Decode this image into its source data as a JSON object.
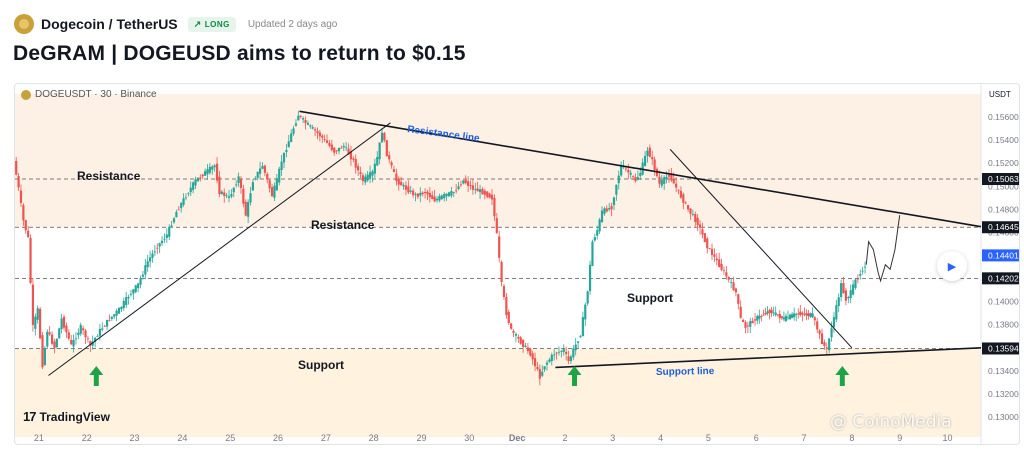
{
  "header": {
    "symbol": "Dogecoin / TetherUS",
    "badge": "LONG",
    "badge_icon": "arrow-up-right-icon",
    "updated": "Updated 2 days ago"
  },
  "title": "DeGRAM | DOGEUSD aims to return to $0.15",
  "chart_header": "DOGEUSDT · 30 · Binance",
  "branding": "TradingView",
  "watermark": "@ CoinoMedia",
  "chart_data": {
    "type": "candlestick",
    "symbol": "DOGEUSDT",
    "interval": "30",
    "exchange": "Binance",
    "currency_label": "USDT",
    "y_ticks": [
      "0.15600",
      "0.15400",
      "0.15200",
      "0.15000",
      "0.14800",
      "0.14600",
      "0.14400",
      "0.14200",
      "0.14000",
      "0.13800",
      "0.13600",
      "0.13400",
      "0.13200",
      "0.13000"
    ],
    "ylim": [
      0.13,
      0.158
    ],
    "x_ticks": [
      "21",
      "22",
      "23",
      "24",
      "25",
      "26",
      "27",
      "28",
      "29",
      "30",
      "Dec",
      "2",
      "3",
      "4",
      "5",
      "6",
      "7",
      "8",
      "9",
      "10"
    ],
    "xlim_days": [
      20.5,
      40.7
    ],
    "price_labels": [
      {
        "value": "0.15063",
        "style": "dark"
      },
      {
        "value": "0.14645",
        "style": "dark"
      },
      {
        "value": "0.14401",
        "style": "blue"
      },
      {
        "value": "0.14202",
        "style": "dark"
      },
      {
        "value": "0.13594",
        "style": "dark"
      }
    ],
    "levels": [
      0.15063,
      0.14645,
      0.14202,
      0.13594
    ],
    "zones": {
      "resistance": [
        0.14645,
        0.158
      ],
      "support": [
        0.128,
        0.13594
      ]
    },
    "annotations": {
      "resistance_1": "Resistance",
      "resistance_2": "Resistance",
      "support_1": "Support",
      "support_2": "Support",
      "resistance_line": "Resistance line",
      "support_line": "Support line"
    },
    "price_path": [
      [
        20.5,
        0.1522
      ],
      [
        20.6,
        0.1498
      ],
      [
        20.7,
        0.147
      ],
      [
        20.8,
        0.1455
      ],
      [
        20.9,
        0.1378
      ],
      [
        21.0,
        0.1393
      ],
      [
        21.1,
        0.1345
      ],
      [
        21.2,
        0.1375
      ],
      [
        21.35,
        0.136
      ],
      [
        21.5,
        0.1385
      ],
      [
        21.7,
        0.1362
      ],
      [
        21.9,
        0.1378
      ],
      [
        22.1,
        0.1362
      ],
      [
        22.3,
        0.1375
      ],
      [
        22.5,
        0.1385
      ],
      [
        22.7,
        0.1393
      ],
      [
        22.9,
        0.1405
      ],
      [
        23.1,
        0.1415
      ],
      [
        23.3,
        0.1435
      ],
      [
        23.5,
        0.1448
      ],
      [
        23.7,
        0.1458
      ],
      [
        23.9,
        0.1478
      ],
      [
        24.1,
        0.1492
      ],
      [
        24.3,
        0.1505
      ],
      [
        24.5,
        0.1512
      ],
      [
        24.7,
        0.1518
      ],
      [
        24.8,
        0.1495
      ],
      [
        25.0,
        0.149
      ],
      [
        25.2,
        0.1508
      ],
      [
        25.35,
        0.1475
      ],
      [
        25.5,
        0.1505
      ],
      [
        25.7,
        0.1518
      ],
      [
        25.9,
        0.1492
      ],
      [
        26.0,
        0.1505
      ],
      [
        26.1,
        0.1522
      ],
      [
        26.3,
        0.1545
      ],
      [
        26.45,
        0.1562
      ],
      [
        26.6,
        0.1555
      ],
      [
        26.8,
        0.1548
      ],
      [
        27.0,
        0.154
      ],
      [
        27.2,
        0.153
      ],
      [
        27.4,
        0.1535
      ],
      [
        27.6,
        0.1522
      ],
      [
        27.8,
        0.1505
      ],
      [
        28.0,
        0.1512
      ],
      [
        28.1,
        0.1525
      ],
      [
        28.2,
        0.1548
      ],
      [
        28.3,
        0.1528
      ],
      [
        28.5,
        0.1505
      ],
      [
        28.7,
        0.1498
      ],
      [
        28.9,
        0.1492
      ],
      [
        29.1,
        0.1495
      ],
      [
        29.3,
        0.1488
      ],
      [
        29.5,
        0.1492
      ],
      [
        29.7,
        0.1495
      ],
      [
        29.9,
        0.1505
      ],
      [
        30.1,
        0.1498
      ],
      [
        30.3,
        0.1495
      ],
      [
        30.5,
        0.149
      ],
      [
        30.6,
        0.1458
      ],
      [
        30.7,
        0.1415
      ],
      [
        30.8,
        0.139
      ],
      [
        30.9,
        0.1375
      ],
      [
        31.0,
        0.137
      ],
      [
        31.1,
        0.1365
      ],
      [
        31.3,
        0.1355
      ],
      [
        31.4,
        0.1345
      ],
      [
        31.5,
        0.1335
      ],
      [
        31.6,
        0.1345
      ],
      [
        31.8,
        0.1355
      ],
      [
        32.0,
        0.1358
      ],
      [
        32.1,
        0.1348
      ],
      [
        32.2,
        0.1358
      ],
      [
        32.35,
        0.1372
      ],
      [
        32.5,
        0.141
      ],
      [
        32.6,
        0.1452
      ],
      [
        32.7,
        0.1462
      ],
      [
        32.8,
        0.1478
      ],
      [
        33.0,
        0.1482
      ],
      [
        33.1,
        0.1502
      ],
      [
        33.2,
        0.1518
      ],
      [
        33.35,
        0.1512
      ],
      [
        33.5,
        0.1505
      ],
      [
        33.6,
        0.1512
      ],
      [
        33.75,
        0.1532
      ],
      [
        33.85,
        0.1522
      ],
      [
        34.0,
        0.1502
      ],
      [
        34.2,
        0.151
      ],
      [
        34.4,
        0.1495
      ],
      [
        34.6,
        0.148
      ],
      [
        34.8,
        0.1468
      ],
      [
        35.0,
        0.1448
      ],
      [
        35.2,
        0.1435
      ],
      [
        35.4,
        0.1422
      ],
      [
        35.6,
        0.1408
      ],
      [
        35.7,
        0.1385
      ],
      [
        35.8,
        0.1378
      ],
      [
        36.0,
        0.1385
      ],
      [
        36.3,
        0.1392
      ],
      [
        36.6,
        0.1385
      ],
      [
        36.9,
        0.139
      ],
      [
        37.2,
        0.1388
      ],
      [
        37.4,
        0.1365
      ],
      [
        37.5,
        0.1358
      ],
      [
        37.6,
        0.1378
      ],
      [
        37.7,
        0.1395
      ],
      [
        37.8,
        0.1415
      ],
      [
        37.9,
        0.1402
      ],
      [
        38.0,
        0.1408
      ],
      [
        38.1,
        0.1418
      ],
      [
        38.2,
        0.1425
      ],
      [
        38.3,
        0.1432
      ]
    ],
    "projection": [
      [
        38.3,
        0.1432
      ],
      [
        38.35,
        0.1452
      ],
      [
        38.45,
        0.1445
      ],
      [
        38.55,
        0.1425
      ],
      [
        38.6,
        0.1418
      ],
      [
        38.7,
        0.1432
      ],
      [
        38.8,
        0.1428
      ],
      [
        38.9,
        0.1445
      ],
      [
        39.0,
        0.1475
      ]
    ],
    "resistance_line": [
      [
        26.45,
        0.1565
      ],
      [
        40.7,
        0.1465
      ]
    ],
    "support_line": [
      [
        31.8,
        0.1343
      ],
      [
        40.7,
        0.136
      ]
    ],
    "rising_trendline": [
      [
        21.2,
        0.1336
      ],
      [
        28.35,
        0.1555
      ]
    ],
    "falling_trendline": [
      [
        34.2,
        0.1532
      ],
      [
        38.0,
        0.136
      ]
    ],
    "arrows_up": [
      22.2,
      32.2,
      37.8
    ],
    "colors": {
      "up": "#26a69a",
      "down": "#ef5350",
      "zone_resistance": "#fdf0e4",
      "zone_support": "#fff3e0",
      "line": "#131722",
      "label_blue": "#1e5fd9",
      "arrow": "#1fa347",
      "price_tag_dark": "#131722",
      "price_tag_blue": "#2962ff"
    }
  }
}
